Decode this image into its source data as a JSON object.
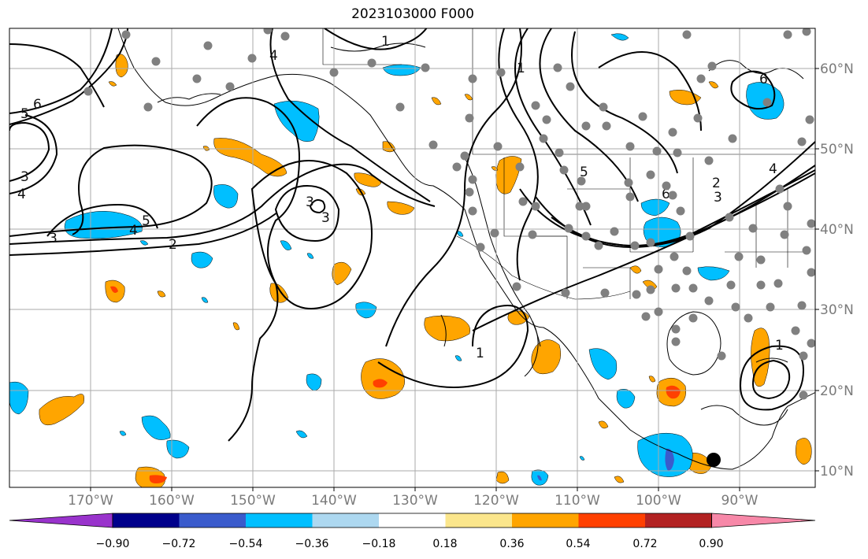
{
  "title": "2023103000 F000",
  "map": {
    "longitude_labels": [
      "170°W",
      "160°W",
      "150°W",
      "140°W",
      "130°W",
      "120°W",
      "110°W",
      "100°W",
      "90°W"
    ],
    "latitude_labels": [
      "60°N",
      "50°N",
      "40°N",
      "30°N",
      "20°N",
      "10°N"
    ],
    "contour_labels": [
      "6",
      "5",
      "3",
      "4",
      "3",
      "4",
      "5",
      "2",
      "1",
      "4",
      "3",
      "1",
      "3",
      "2",
      "1",
      "3",
      "4",
      "5",
      "6",
      "1",
      "6"
    ]
  },
  "colorbar": {
    "ticks": [
      "−0.90",
      "−0.72",
      "−0.54",
      "−0.36",
      "−0.18",
      "0.18",
      "0.36",
      "0.54",
      "0.72",
      "0.90"
    ],
    "colors": [
      "#9933cc",
      "#00008b",
      "#3a5bcc",
      "#00bfff",
      "#add8f0",
      "#ffffff",
      "#fbe68c",
      "#ffa500",
      "#ff4000",
      "#b22222",
      "#f788a8"
    ]
  }
}
